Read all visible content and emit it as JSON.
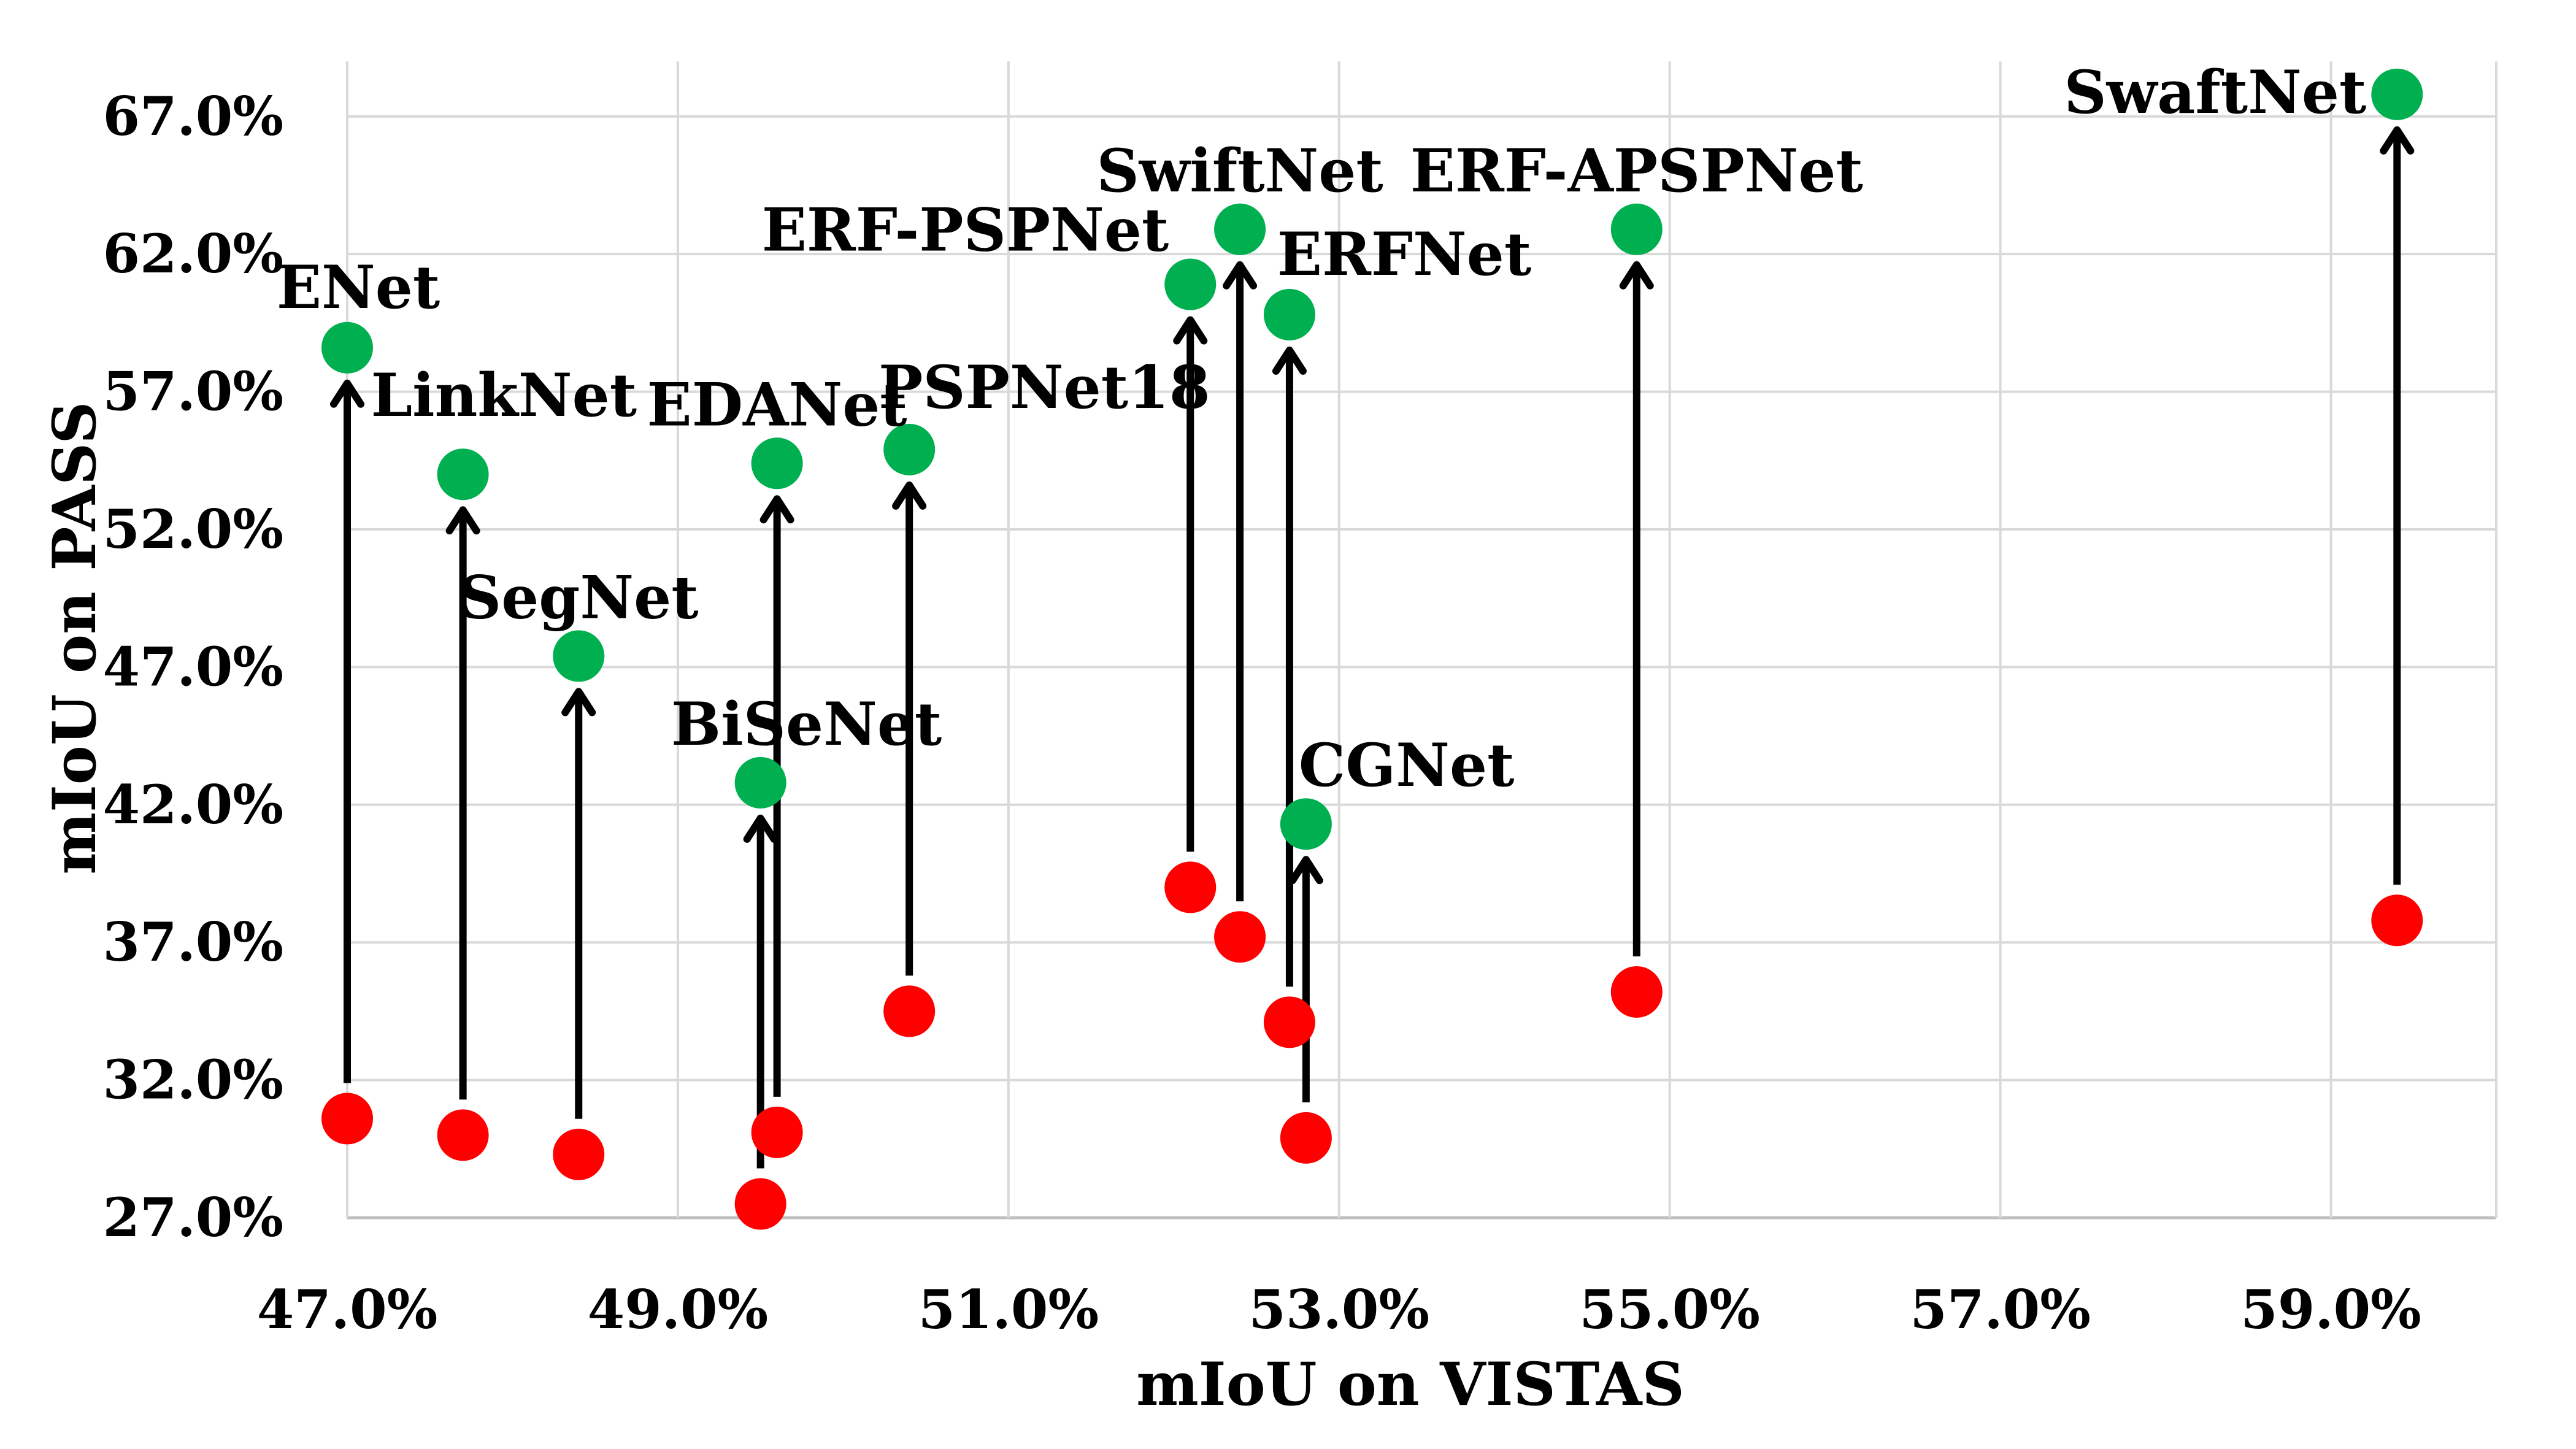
{
  "chart_data": {
    "type": "scatter",
    "title": "",
    "xlabel": "mIoU on VISTAS",
    "ylabel": "mIoU on PASS",
    "xlim": [
      47.0,
      60.0
    ],
    "ylim": [
      27.0,
      69.0
    ],
    "x_ticks": [
      "47.0%",
      "49.0%",
      "51.0%",
      "53.0%",
      "55.0%",
      "57.0%",
      "59.0%"
    ],
    "y_ticks": [
      "27.0%",
      "32.0%",
      "37.0%",
      "42.0%",
      "47.0%",
      "52.0%",
      "57.0%",
      "62.0%",
      "67.0%"
    ],
    "colors": {
      "before": "#ff0000",
      "after": "#00b050",
      "arrow": "#000000"
    },
    "series": [
      {
        "name": "ENet",
        "x": 47.0,
        "y_before": 30.6,
        "y_after": 58.6,
        "label_pos": "above"
      },
      {
        "name": "LinkNet",
        "x": 47.7,
        "y_before": 30.0,
        "y_after": 54.0,
        "label_pos": "above-right"
      },
      {
        "name": "SegNet",
        "x": 48.4,
        "y_before": 29.3,
        "y_after": 47.4,
        "label_pos": "above"
      },
      {
        "name": "BiSeNet",
        "x": 49.5,
        "y_before": 27.5,
        "y_after": 42.8,
        "label_pos": "above"
      },
      {
        "name": "EDANet",
        "x": 49.6,
        "y_before": 30.1,
        "y_after": 54.4,
        "label_pos": "above"
      },
      {
        "name": "PSPNet18",
        "x": 50.4,
        "y_before": 34.5,
        "y_after": 54.9,
        "label_pos": "above-right"
      },
      {
        "name": "ERF-PSPNet",
        "x": 52.1,
        "y_before": 39.0,
        "y_after": 60.9,
        "label_pos": "above-left"
      },
      {
        "name": "SwiftNet",
        "x": 52.4,
        "y_before": 37.2,
        "y_after": 62.9,
        "label_pos": "above"
      },
      {
        "name": "ERFNet",
        "x": 52.7,
        "y_before": 34.1,
        "y_after": 59.8,
        "label_pos": "above-right"
      },
      {
        "name": "CGNet",
        "x": 52.8,
        "y_before": 29.9,
        "y_after": 41.3,
        "label_pos": "above-right"
      },
      {
        "name": "ERF-APSPNet",
        "x": 54.8,
        "y_before": 35.2,
        "y_after": 62.9,
        "label_pos": "above"
      },
      {
        "name": "SwaftNet",
        "x": 59.4,
        "y_before": 37.8,
        "y_after": 67.8,
        "label_pos": "left"
      }
    ]
  }
}
